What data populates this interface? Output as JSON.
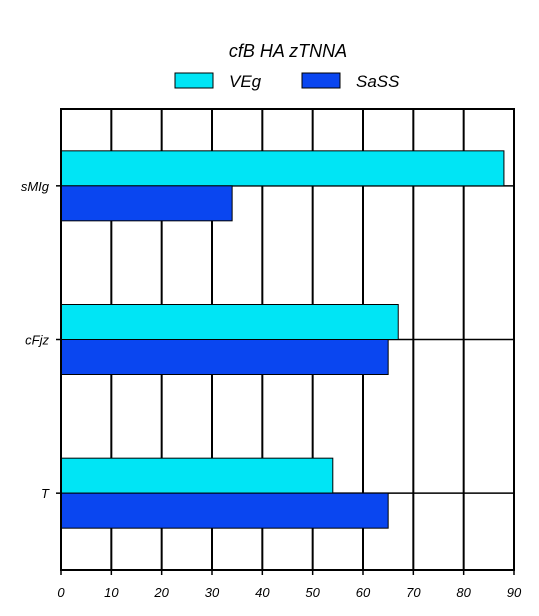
{
  "chart_data": {
    "type": "bar",
    "orientation": "horizontal",
    "title": "cfB HA zTNNA",
    "categories": [
      "sMIg",
      "cFjz",
      "T"
    ],
    "series": [
      {
        "name": "VEg",
        "values": [
          88,
          67,
          54
        ],
        "color": "#00e5f5"
      },
      {
        "name": "SaSS",
        "values": [
          34,
          65,
          65
        ],
        "color": "#0a46f0"
      }
    ],
    "xlim": [
      0,
      90
    ],
    "xticks": [
      "0",
      "10",
      "20",
      "30",
      "40",
      "50",
      "60",
      "70",
      "80",
      "90"
    ],
    "grid": true,
    "legend_position": "top"
  }
}
